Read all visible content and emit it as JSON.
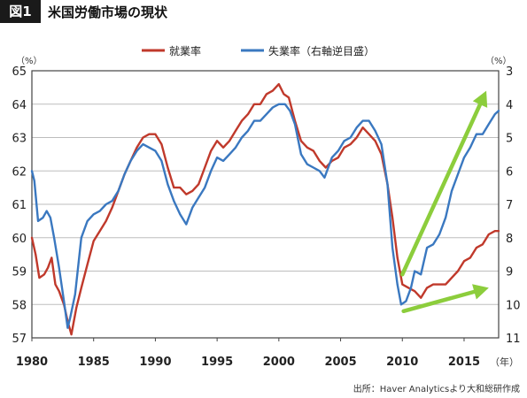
{
  "figure": {
    "badge": "図1",
    "title": "米国労働市場の現状",
    "source": "出所：Haver Analyticsより大和総研作成"
  },
  "chart_data": {
    "type": "line",
    "x_unit": "（年）",
    "left_unit": "（%）",
    "right_unit": "（%）",
    "xlim": [
      1980,
      2017.8
    ],
    "x_ticks": [
      1980,
      1985,
      1990,
      1995,
      2000,
      2005,
      2010,
      2015
    ],
    "left_axis": {
      "ylim": [
        57,
        65
      ],
      "ticks": [
        57,
        58,
        59,
        60,
        61,
        62,
        63,
        64,
        65
      ]
    },
    "right_axis": {
      "ylim": [
        11,
        3
      ],
      "inverted": true,
      "ticks": [
        3,
        4,
        5,
        6,
        7,
        8,
        9,
        10,
        11
      ]
    },
    "grid": "horizontal",
    "legend_position": "top",
    "series": [
      {
        "name": "就業率",
        "axis": "left",
        "color": "#c0392b",
        "points": [
          [
            1980.0,
            60.0
          ],
          [
            1980.3,
            59.5
          ],
          [
            1980.6,
            58.8
          ],
          [
            1981.0,
            58.9
          ],
          [
            1981.3,
            59.1
          ],
          [
            1981.6,
            59.4
          ],
          [
            1981.9,
            58.6
          ],
          [
            1982.2,
            58.4
          ],
          [
            1982.6,
            58.0
          ],
          [
            1982.9,
            57.5
          ],
          [
            1983.2,
            57.1
          ],
          [
            1983.6,
            57.9
          ],
          [
            1984.0,
            58.5
          ],
          [
            1984.5,
            59.2
          ],
          [
            1985.0,
            59.9
          ],
          [
            1985.5,
            60.2
          ],
          [
            1986.0,
            60.5
          ],
          [
            1986.5,
            60.9
          ],
          [
            1987.0,
            61.4
          ],
          [
            1987.5,
            61.9
          ],
          [
            1988.0,
            62.3
          ],
          [
            1988.5,
            62.7
          ],
          [
            1989.0,
            63.0
          ],
          [
            1989.5,
            63.1
          ],
          [
            1990.0,
            63.1
          ],
          [
            1990.5,
            62.8
          ],
          [
            1991.0,
            62.1
          ],
          [
            1991.5,
            61.5
          ],
          [
            1992.0,
            61.5
          ],
          [
            1992.5,
            61.3
          ],
          [
            1993.0,
            61.4
          ],
          [
            1993.5,
            61.6
          ],
          [
            1994.0,
            62.1
          ],
          [
            1994.5,
            62.6
          ],
          [
            1995.0,
            62.9
          ],
          [
            1995.5,
            62.7
          ],
          [
            1996.0,
            62.9
          ],
          [
            1996.5,
            63.2
          ],
          [
            1997.0,
            63.5
          ],
          [
            1997.5,
            63.7
          ],
          [
            1998.0,
            64.0
          ],
          [
            1998.5,
            64.0
          ],
          [
            1999.0,
            64.3
          ],
          [
            1999.5,
            64.4
          ],
          [
            2000.0,
            64.6
          ],
          [
            2000.4,
            64.3
          ],
          [
            2000.8,
            64.2
          ],
          [
            2001.3,
            63.5
          ],
          [
            2001.8,
            62.9
          ],
          [
            2002.3,
            62.7
          ],
          [
            2002.8,
            62.6
          ],
          [
            2003.3,
            62.3
          ],
          [
            2003.8,
            62.1
          ],
          [
            2004.3,
            62.3
          ],
          [
            2004.8,
            62.4
          ],
          [
            2005.3,
            62.7
          ],
          [
            2005.8,
            62.8
          ],
          [
            2006.3,
            63.0
          ],
          [
            2006.8,
            63.3
          ],
          [
            2007.3,
            63.1
          ],
          [
            2007.8,
            62.9
          ],
          [
            2008.3,
            62.5
          ],
          [
            2008.8,
            61.6
          ],
          [
            2009.2,
            60.6
          ],
          [
            2009.6,
            59.4
          ],
          [
            2010.0,
            58.6
          ],
          [
            2010.5,
            58.5
          ],
          [
            2011.0,
            58.4
          ],
          [
            2011.5,
            58.2
          ],
          [
            2012.0,
            58.5
          ],
          [
            2012.5,
            58.6
          ],
          [
            2013.0,
            58.6
          ],
          [
            2013.5,
            58.6
          ],
          [
            2014.0,
            58.8
          ],
          [
            2014.5,
            59.0
          ],
          [
            2015.0,
            59.3
          ],
          [
            2015.5,
            59.4
          ],
          [
            2016.0,
            59.7
          ],
          [
            2016.5,
            59.8
          ],
          [
            2017.0,
            60.1
          ],
          [
            2017.5,
            60.2
          ],
          [
            2017.8,
            60.2
          ]
        ]
      },
      {
        "name": "失業率（右軸逆目盛）",
        "axis": "right",
        "color": "#3a78c0",
        "points": [
          [
            1980.0,
            6.0
          ],
          [
            1980.2,
            6.3
          ],
          [
            1980.5,
            7.5
          ],
          [
            1980.9,
            7.4
          ],
          [
            1981.2,
            7.2
          ],
          [
            1981.5,
            7.4
          ],
          [
            1981.8,
            8.0
          ],
          [
            1982.2,
            8.9
          ],
          [
            1982.6,
            9.9
          ],
          [
            1982.9,
            10.7
          ],
          [
            1983.1,
            10.4
          ],
          [
            1983.5,
            9.7
          ],
          [
            1984.0,
            8.0
          ],
          [
            1984.5,
            7.5
          ],
          [
            1985.0,
            7.3
          ],
          [
            1985.5,
            7.2
          ],
          [
            1986.0,
            7.0
          ],
          [
            1986.5,
            6.9
          ],
          [
            1987.0,
            6.6
          ],
          [
            1987.5,
            6.1
          ],
          [
            1988.0,
            5.7
          ],
          [
            1988.5,
            5.4
          ],
          [
            1989.0,
            5.2
          ],
          [
            1989.5,
            5.3
          ],
          [
            1990.0,
            5.4
          ],
          [
            1990.5,
            5.7
          ],
          [
            1991.0,
            6.4
          ],
          [
            1991.5,
            6.9
          ],
          [
            1992.0,
            7.3
          ],
          [
            1992.5,
            7.6
          ],
          [
            1993.0,
            7.1
          ],
          [
            1993.5,
            6.8
          ],
          [
            1994.0,
            6.5
          ],
          [
            1994.5,
            6.0
          ],
          [
            1995.0,
            5.6
          ],
          [
            1995.5,
            5.7
          ],
          [
            1996.0,
            5.5
          ],
          [
            1996.5,
            5.3
          ],
          [
            1997.0,
            5.0
          ],
          [
            1997.5,
            4.8
          ],
          [
            1998.0,
            4.5
          ],
          [
            1998.5,
            4.5
          ],
          [
            1999.0,
            4.3
          ],
          [
            1999.5,
            4.1
          ],
          [
            2000.0,
            4.0
          ],
          [
            2000.5,
            4.0
          ],
          [
            2000.9,
            4.2
          ],
          [
            2001.3,
            4.6
          ],
          [
            2001.8,
            5.5
          ],
          [
            2002.3,
            5.8
          ],
          [
            2002.8,
            5.9
          ],
          [
            2003.3,
            6.0
          ],
          [
            2003.7,
            6.2
          ],
          [
            2004.3,
            5.6
          ],
          [
            2004.8,
            5.4
          ],
          [
            2005.3,
            5.1
          ],
          [
            2005.8,
            5.0
          ],
          [
            2006.3,
            4.7
          ],
          [
            2006.8,
            4.5
          ],
          [
            2007.3,
            4.5
          ],
          [
            2007.8,
            4.8
          ],
          [
            2008.3,
            5.2
          ],
          [
            2008.8,
            6.4
          ],
          [
            2009.2,
            8.3
          ],
          [
            2009.6,
            9.4
          ],
          [
            2009.9,
            10.0
          ],
          [
            2010.3,
            9.9
          ],
          [
            2010.7,
            9.5
          ],
          [
            2011.0,
            9.0
          ],
          [
            2011.5,
            9.1
          ],
          [
            2012.0,
            8.3
          ],
          [
            2012.5,
            8.2
          ],
          [
            2013.0,
            7.9
          ],
          [
            2013.5,
            7.4
          ],
          [
            2014.0,
            6.6
          ],
          [
            2014.5,
            6.1
          ],
          [
            2015.0,
            5.6
          ],
          [
            2015.5,
            5.3
          ],
          [
            2016.0,
            4.9
          ],
          [
            2016.5,
            4.9
          ],
          [
            2017.0,
            4.6
          ],
          [
            2017.5,
            4.3
          ],
          [
            2017.8,
            4.2
          ]
        ]
      }
    ],
    "annotations": [
      {
        "type": "arrow",
        "color": "#8ccd3c",
        "from": [
          2010.0,
          58.9
        ],
        "to": [
          2016.8,
          64.4
        ]
      },
      {
        "type": "arrow",
        "color": "#8ccd3c",
        "from": [
          2010.1,
          57.8
        ],
        "to": [
          2017.0,
          58.5
        ]
      }
    ]
  }
}
